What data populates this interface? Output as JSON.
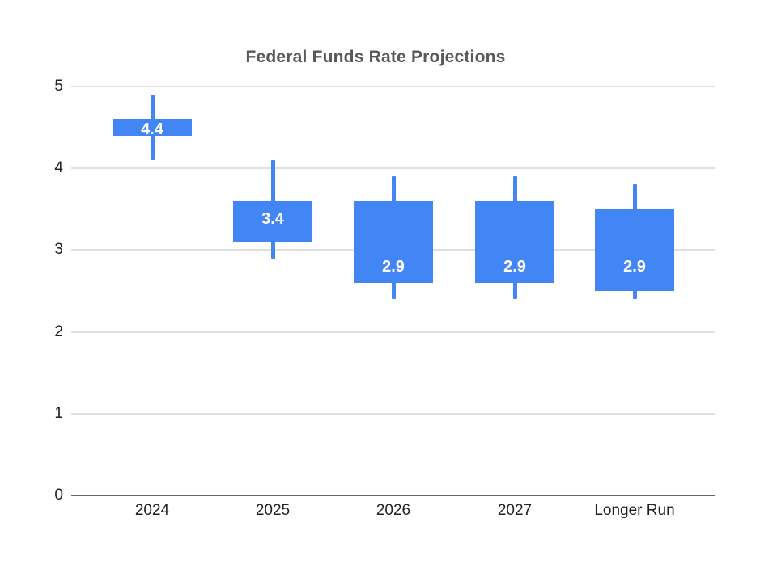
{
  "title": "Federal Funds Rate Projections",
  "colors": {
    "candle": "#4285f4",
    "candle_label_text": "#ffffff",
    "gridline": "#e0e0e0",
    "axis_line": "#666666",
    "tick_text": "#212121",
    "title_text": "#58585a",
    "background": "#ffffff"
  },
  "chart_data": {
    "type": "candlestick",
    "title": "Federal Funds Rate Projections",
    "xlabel": "",
    "ylabel": "",
    "categories": [
      "2024",
      "2025",
      "2026",
      "2027",
      "Longer Run"
    ],
    "series": [
      {
        "category": "2024",
        "whisker_low": 4.1,
        "box_low": 4.4,
        "box_high": 4.6,
        "whisker_high": 4.9,
        "median": 4.4,
        "label": "4.4",
        "label_y_value": 4.48
      },
      {
        "category": "2025",
        "whisker_low": 2.9,
        "box_low": 3.1,
        "box_high": 3.6,
        "whisker_high": 4.1,
        "median": 3.4,
        "label": "3.4",
        "label_y_value": 3.38
      },
      {
        "category": "2026",
        "whisker_low": 2.4,
        "box_low": 2.6,
        "box_high": 3.6,
        "whisker_high": 3.9,
        "median": 2.9,
        "label": "2.9",
        "label_y_value": 2.8
      },
      {
        "category": "2027",
        "whisker_low": 2.4,
        "box_low": 2.6,
        "box_high": 3.6,
        "whisker_high": 3.9,
        "median": 2.9,
        "label": "2.9",
        "label_y_value": 2.8
      },
      {
        "category": "Longer Run",
        "whisker_low": 2.4,
        "box_low": 2.5,
        "box_high": 3.5,
        "whisker_high": 3.8,
        "median": 2.9,
        "label": "2.9",
        "label_y_value": 2.8
      }
    ],
    "ylim": [
      0,
      5
    ],
    "y_ticks": [
      0,
      1,
      2,
      3,
      4,
      5
    ],
    "grid": true,
    "legend": "none"
  }
}
